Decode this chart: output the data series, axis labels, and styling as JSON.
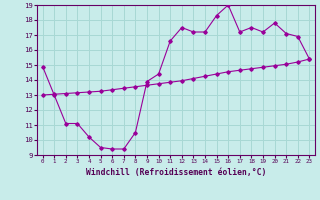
{
  "title": "",
  "xlabel": "Windchill (Refroidissement éolien,°C)",
  "bg_color": "#c8ecea",
  "line_color": "#990099",
  "grid_color": "#a8d8d4",
  "xlim": [
    -0.5,
    23.5
  ],
  "ylim": [
    9,
    19
  ],
  "xticks": [
    0,
    1,
    2,
    3,
    4,
    5,
    6,
    7,
    8,
    9,
    10,
    11,
    12,
    13,
    14,
    15,
    16,
    17,
    18,
    19,
    20,
    21,
    22,
    23
  ],
  "yticks": [
    9,
    10,
    11,
    12,
    13,
    14,
    15,
    16,
    17,
    18,
    19
  ],
  "hours": [
    0,
    1,
    2,
    3,
    4,
    5,
    6,
    7,
    8,
    9,
    10,
    11,
    12,
    13,
    14,
    15,
    16,
    17,
    18,
    19,
    20,
    21,
    22,
    23
  ],
  "windchill": [
    14.9,
    13.0,
    11.1,
    11.1,
    10.2,
    9.5,
    9.4,
    9.4,
    10.5,
    13.9,
    14.4,
    16.6,
    17.5,
    17.2,
    17.2,
    18.3,
    19.0,
    17.2,
    17.5,
    17.2,
    17.8,
    17.1,
    16.9,
    15.4
  ],
  "trend": [
    13.0,
    13.05,
    13.1,
    13.15,
    13.2,
    13.25,
    13.35,
    13.45,
    13.55,
    13.65,
    13.75,
    13.85,
    13.95,
    14.1,
    14.25,
    14.4,
    14.55,
    14.65,
    14.75,
    14.85,
    14.95,
    15.05,
    15.2,
    15.4
  ]
}
